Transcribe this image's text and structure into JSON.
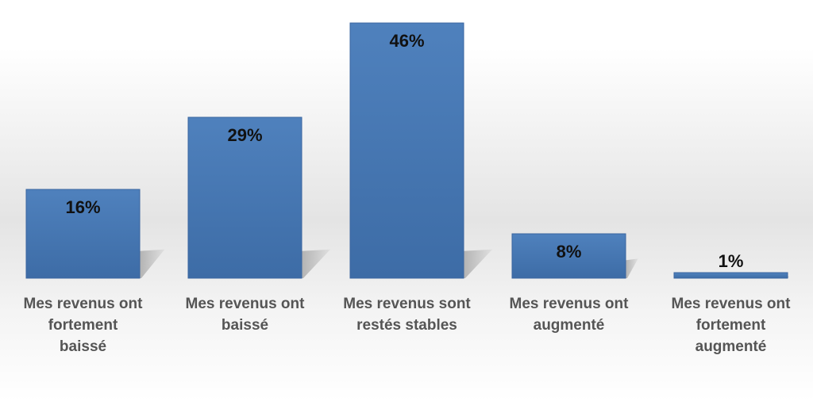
{
  "chart_data": {
    "type": "bar",
    "title": "",
    "xlabel": "",
    "ylabel": "",
    "ylim": [
      0,
      46
    ],
    "grid": false,
    "legend": "none",
    "categories": [
      "Mes revenus ont fortement baissé",
      "Mes revenus ont baissé",
      "Mes revenus sont restés stables",
      "Mes revenus ont augmenté",
      "Mes revenus ont fortement augmenté"
    ],
    "category_lines": [
      [
        "Mes revenus ont",
        "fortement",
        "baissé"
      ],
      [
        "Mes revenus ont",
        "baissé"
      ],
      [
        "Mes revenus sont",
        "restés stables"
      ],
      [
        "Mes revenus ont",
        "augmenté"
      ],
      [
        "Mes revenus ont",
        "fortement",
        "augmenté"
      ]
    ],
    "values": [
      16,
      29,
      46,
      8,
      1
    ],
    "data_labels": [
      "16%",
      "29%",
      "46%",
      "8%",
      "1%"
    ],
    "unit": "%"
  },
  "colors": {
    "bar_top": "#4f81bd",
    "bar_bottom": "#3d6ca6",
    "bar_edge": "#3a65a0",
    "shadow": "#a9a9a9",
    "label_text": "#555555",
    "value_text": "#111111"
  }
}
